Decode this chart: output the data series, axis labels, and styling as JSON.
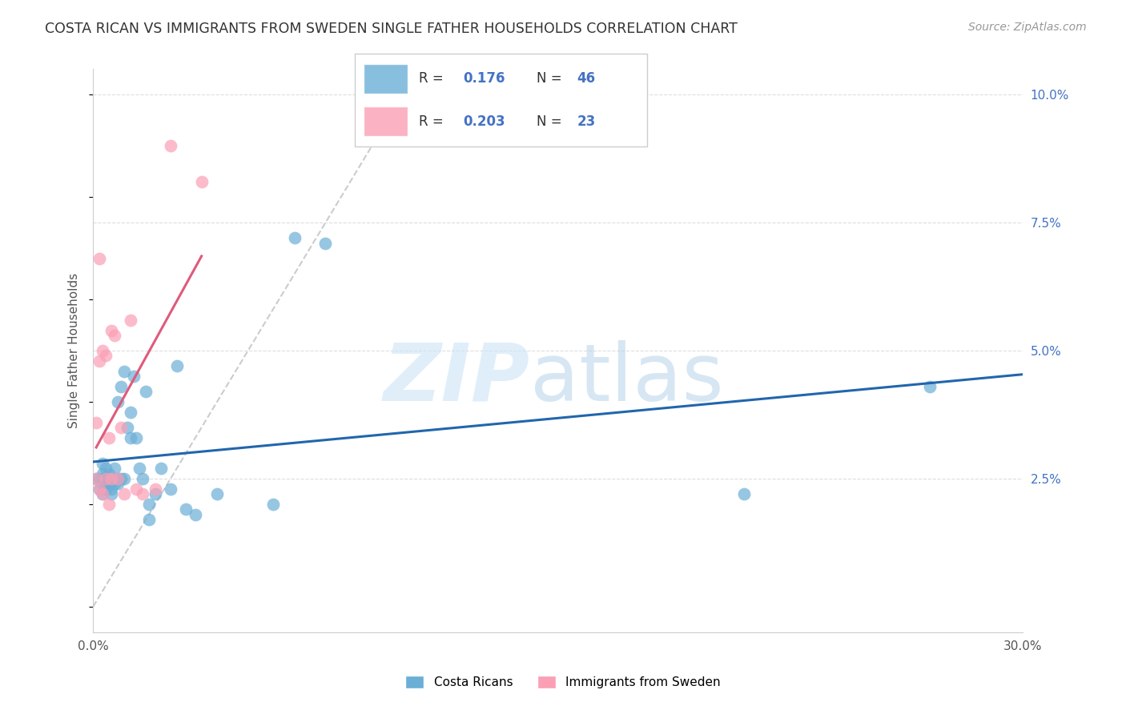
{
  "title": "COSTA RICAN VS IMMIGRANTS FROM SWEDEN SINGLE FATHER HOUSEHOLDS CORRELATION CHART",
  "source": "Source: ZipAtlas.com",
  "ylabel": "Single Father Households",
  "x_lim": [
    0.0,
    0.3
  ],
  "y_lim": [
    -0.005,
    0.105
  ],
  "legend_r1": "0.176",
  "legend_n1": "46",
  "legend_r2": "0.203",
  "legend_n2": "23",
  "watermark_zip": "ZIP",
  "watermark_atlas": "atlas",
  "blue_color": "#6baed6",
  "pink_color": "#fa9fb5",
  "blue_line_color": "#2166ac",
  "pink_line_color": "#e05a7a",
  "diag_line_color": "#cccccc",
  "costa_rican_x": [
    0.001,
    0.002,
    0.002,
    0.003,
    0.003,
    0.003,
    0.003,
    0.004,
    0.004,
    0.004,
    0.005,
    0.005,
    0.005,
    0.006,
    0.006,
    0.007,
    0.007,
    0.008,
    0.008,
    0.008,
    0.009,
    0.009,
    0.01,
    0.01,
    0.011,
    0.012,
    0.012,
    0.013,
    0.014,
    0.015,
    0.016,
    0.017,
    0.018,
    0.018,
    0.02,
    0.022,
    0.025,
    0.027,
    0.03,
    0.033,
    0.04,
    0.058,
    0.065,
    0.075,
    0.21,
    0.27
  ],
  "costa_rican_y": [
    0.025,
    0.025,
    0.023,
    0.022,
    0.024,
    0.026,
    0.028,
    0.023,
    0.025,
    0.027,
    0.024,
    0.024,
    0.026,
    0.022,
    0.023,
    0.024,
    0.027,
    0.025,
    0.024,
    0.04,
    0.025,
    0.043,
    0.025,
    0.046,
    0.035,
    0.033,
    0.038,
    0.045,
    0.033,
    0.027,
    0.025,
    0.042,
    0.017,
    0.02,
    0.022,
    0.027,
    0.023,
    0.047,
    0.019,
    0.018,
    0.022,
    0.02,
    0.072,
    0.071,
    0.022,
    0.043
  ],
  "sweden_x": [
    0.001,
    0.001,
    0.002,
    0.002,
    0.002,
    0.003,
    0.003,
    0.004,
    0.004,
    0.005,
    0.005,
    0.006,
    0.006,
    0.007,
    0.008,
    0.009,
    0.01,
    0.012,
    0.014,
    0.016,
    0.02,
    0.025,
    0.035
  ],
  "sweden_y": [
    0.025,
    0.036,
    0.023,
    0.048,
    0.068,
    0.022,
    0.05,
    0.025,
    0.049,
    0.02,
    0.033,
    0.025,
    0.054,
    0.053,
    0.025,
    0.035,
    0.022,
    0.056,
    0.023,
    0.022,
    0.023,
    0.09,
    0.083
  ]
}
